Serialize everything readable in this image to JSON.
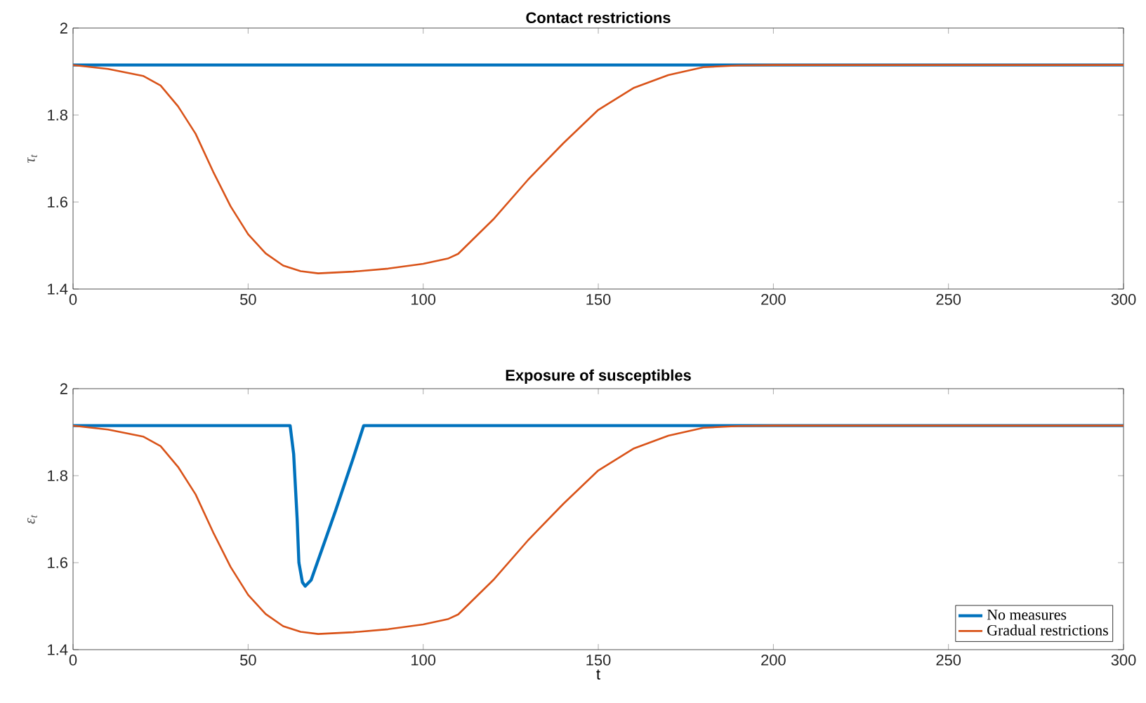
{
  "chart_data": [
    {
      "type": "line",
      "title": "Contact restrictions",
      "ylabel": "τ$_{t}$",
      "xlim": [
        0,
        300
      ],
      "xticks": [
        0,
        50,
        100,
        150,
        200,
        250,
        300
      ],
      "ylim": [
        1.4,
        2
      ],
      "yticks": [
        1.4,
        1.6,
        1.8,
        2
      ],
      "grid": false,
      "legend": false,
      "series": [
        {
          "color": "#0072bd",
          "x": [
            0,
            300
          ],
          "values": [
            1.915,
            1.915
          ]
        },
        {
          "color": "#d95319",
          "x": [
            0,
            10,
            20,
            25,
            30,
            35,
            40,
            45,
            50,
            55,
            60,
            65,
            70,
            80,
            90,
            100,
            107,
            110,
            120,
            130,
            140,
            150,
            160,
            170,
            180,
            190,
            200,
            300
          ],
          "values": [
            1.915,
            1.906,
            1.89,
            1.868,
            1.82,
            1.757,
            1.67,
            1.59,
            1.526,
            1.482,
            1.454,
            1.441,
            1.436,
            1.44,
            1.447,
            1.458,
            1.47,
            1.481,
            1.56,
            1.652,
            1.735,
            1.812,
            1.862,
            1.892,
            1.91,
            1.914,
            1.915,
            1.915
          ]
        }
      ]
    },
    {
      "type": "line",
      "title": "Exposure of susceptibles",
      "xlabel": "t",
      "ylabel": "ε$_{t}$",
      "xlim": [
        0,
        300
      ],
      "xticks": [
        0,
        50,
        100,
        150,
        200,
        250,
        300
      ],
      "ylim": [
        1.4,
        2
      ],
      "yticks": [
        1.4,
        1.6,
        1.8,
        2
      ],
      "grid": false,
      "legend": "bottom right",
      "series": [
        {
          "name": "No measures",
          "color": "#0072bd",
          "x": [
            0,
            62,
            63,
            64,
            64.5,
            65.5,
            66.3,
            68,
            75,
            80,
            83,
            300
          ],
          "values": [
            1.915,
            1.915,
            1.85,
            1.7,
            1.6,
            1.555,
            1.546,
            1.56,
            1.72,
            1.84,
            1.915,
            1.915
          ]
        },
        {
          "name": "Gradual restrictions",
          "color": "#d95319",
          "x": [
            0,
            10,
            20,
            25,
            30,
            35,
            40,
            45,
            50,
            55,
            60,
            65,
            70,
            80,
            90,
            100,
            107,
            110,
            120,
            130,
            140,
            150,
            160,
            170,
            180,
            190,
            200,
            300
          ],
          "values": [
            1.915,
            1.906,
            1.89,
            1.868,
            1.82,
            1.757,
            1.67,
            1.59,
            1.526,
            1.482,
            1.454,
            1.441,
            1.436,
            1.44,
            1.447,
            1.458,
            1.47,
            1.481,
            1.56,
            1.652,
            1.735,
            1.812,
            1.862,
            1.892,
            1.91,
            1.914,
            1.915,
            1.915
          ]
        }
      ]
    }
  ]
}
